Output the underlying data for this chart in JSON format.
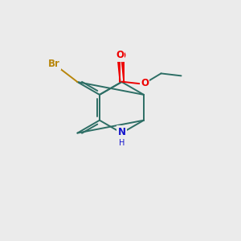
{
  "background_color": "#ebebeb",
  "bond_color": "#2d6e65",
  "bond_width": 1.4,
  "atom_colors": {
    "Br": "#b8860b",
    "O": "#ee0000",
    "N": "#1414cc",
    "C": "#2d6e65"
  },
  "font_size_atom": 8.5,
  "font_size_H": 7.0,
  "figsize": [
    3.0,
    3.0
  ],
  "dpi": 100
}
